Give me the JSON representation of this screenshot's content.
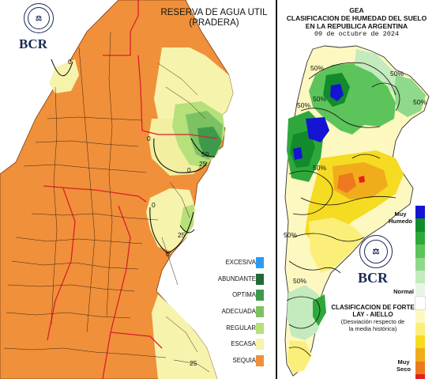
{
  "left_map": {
    "title": "RESERVA DE AGUA UTIL",
    "subtitle": "(PRADERA)",
    "logo_text": "BCR",
    "seal_text": "BOLSA DE COMERCIO DE ROSARIO",
    "isolines": [
      "0",
      "0",
      "0",
      "0",
      "0",
      "25",
      "50",
      "25",
      "25"
    ],
    "legend": [
      {
        "label": "EXCESIVA",
        "color": "#2b9bf4"
      },
      {
        "label": "ABUNDANTE",
        "color": "#1f6b33"
      },
      {
        "label": "OPTIMA",
        "color": "#3e9a4a"
      },
      {
        "label": "ADECUADA",
        "color": "#7cc263"
      },
      {
        "label": "REGULAR",
        "color": "#b5e07a"
      },
      {
        "label": "ESCASA",
        "color": "#f6f3ac"
      },
      {
        "label": "SEQUIA",
        "color": "#f0903a"
      }
    ]
  },
  "right_map": {
    "title_line1": "GEA",
    "title_line2": "CLASIFICACION DE HUMEDAD DEL SUELO",
    "title_line3": "EN LA REPUBLICA ARGENTINA",
    "date": "09 de octubre de 2024",
    "logo_text": "BCR",
    "seal_text": "BOLSA DE COMERCIO DE ROSARIO",
    "isolines": [
      "50%",
      "50%",
      "50%",
      "50%",
      "50%",
      "50%",
      "50%",
      "50%"
    ],
    "legend_top": "Muy Humedo",
    "legend_mid": "Normal",
    "legend_bottom": "Muy Seco",
    "legend_colors": [
      "#1414d2",
      "#138a2c",
      "#2fa83b",
      "#5cc45a",
      "#8fd98a",
      "#c3ebbd",
      "#e9f6e6",
      "#ffffff",
      "#fdf8c0",
      "#fbef7a",
      "#f5db22",
      "#f1ac1c",
      "#ec7a1d",
      "#e41f1f"
    ],
    "note_title": "CLASIFICACION DE FORTE LAY - AIELLO",
    "note_line1": "(Desviación respecto de",
    "note_line2": "la media histórica)"
  }
}
